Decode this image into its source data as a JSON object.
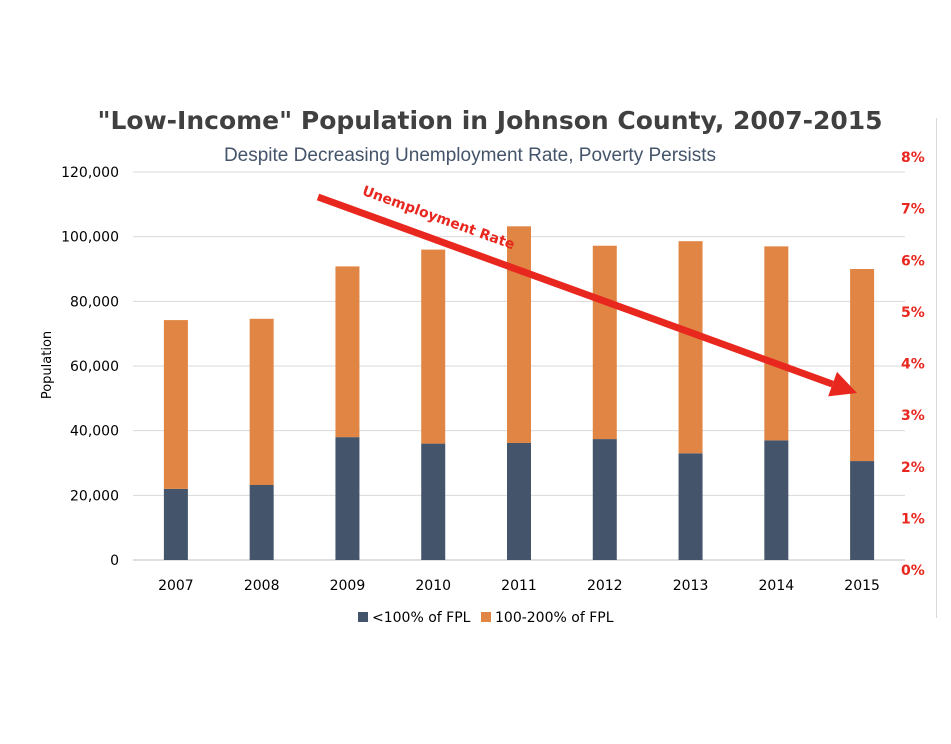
{
  "chart_data": {
    "type": "bar",
    "stacked": true,
    "title": "\"Low-Income\" Population in Johnson County, 2007-2015",
    "subtitle": "Despite Decreasing Unemployment Rate, Poverty Persists",
    "ylabel": "Population",
    "ylim": [
      0,
      120000
    ],
    "yticks": [
      "0",
      "20,000",
      "40,000",
      "60,000",
      "80,000",
      "100,000",
      "120,000"
    ],
    "y2lim": [
      0,
      8
    ],
    "y2ticks": [
      "0%",
      "1%",
      "2%",
      "3%",
      "4%",
      "5%",
      "6%",
      "7%",
      "8%"
    ],
    "categories": [
      "2007",
      "2008",
      "2009",
      "2010",
      "2011",
      "2012",
      "2013",
      "2014",
      "2015"
    ],
    "series": [
      {
        "name": "<100% of FPL",
        "color": "#44546a",
        "values": [
          22000,
          23200,
          38000,
          36000,
          36200,
          37400,
          33000,
          37000,
          30600
        ]
      },
      {
        "name": "100-200% of FPL",
        "color": "#e08543",
        "values": [
          52200,
          51400,
          52800,
          60000,
          67000,
          59800,
          65600,
          60000,
          59400
        ]
      }
    ],
    "annotation": {
      "label": "Unemployment Rate",
      "color": "#e8271f",
      "from_year": "2007",
      "to_year": "2015"
    },
    "grid": true,
    "legend": "bottom",
    "y2_color": "#e8271f"
  }
}
